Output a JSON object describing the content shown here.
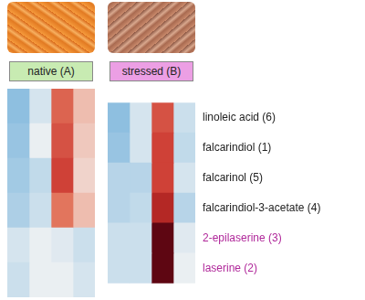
{
  "chart_data": {
    "type": "heatmap",
    "rows": [
      "linoleic acid (6)",
      "falcarindiol (1)",
      "falcarinol (5)",
      "falcarindiol-3-acetate (4)",
      "2-epilaserine (3)",
      "laserine (2)"
    ],
    "row_colors": [
      "#222222",
      "#222222",
      "#222222",
      "#222222",
      "#b0289a",
      "#b0289a"
    ],
    "color_range": [
      -1,
      1
    ],
    "grid": false,
    "tick_labels": "y",
    "panels": [
      {
        "title": "native (A)",
        "color": "#c8ebb2",
        "cells": [
          [
            -0.5,
            -0.15,
            0.6,
            0.25
          ],
          [
            -0.45,
            -0.05,
            0.65,
            0.2
          ],
          [
            -0.4,
            -0.25,
            0.7,
            0.15
          ],
          [
            -0.35,
            -0.2,
            0.55,
            0.25
          ],
          [
            -0.15,
            -0.05,
            -0.1,
            -0.2
          ],
          [
            -0.2,
            -0.05,
            -0.05,
            -0.15
          ]
        ]
      },
      {
        "title": "stressed (B)",
        "color": "#ec9fe4",
        "cells": [
          [
            -0.5,
            -0.15,
            0.65,
            -0.2
          ],
          [
            -0.45,
            -0.15,
            0.7,
            -0.25
          ],
          [
            -0.3,
            -0.3,
            0.7,
            -0.15
          ],
          [
            -0.3,
            -0.25,
            0.8,
            -0.3
          ],
          [
            -0.2,
            -0.2,
            1.0,
            -0.1
          ],
          [
            -0.2,
            -0.2,
            1.0,
            -0.05
          ]
        ]
      }
    ]
  }
}
